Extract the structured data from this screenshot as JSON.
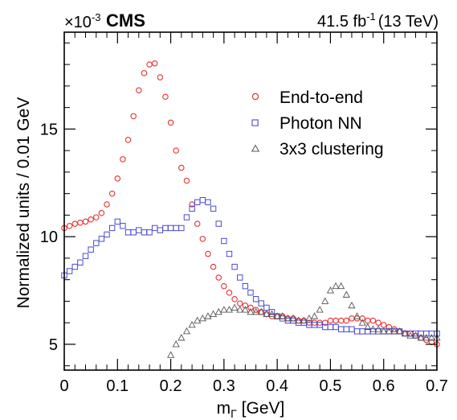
{
  "chart_data": {
    "type": "scatter",
    "experiment_label": "CMS",
    "lumi_label": "41.5 fb",
    "lumi_exponent": "-1",
    "energy_label": "(13 TeV)",
    "exponent_base": "×10",
    "exponent_power": "-3",
    "xlabel_main": "m",
    "xlabel_sub": "Γ",
    "xlabel_unit": " [GeV]",
    "ylabel": "Normalized units / 0.01 GeV",
    "xlim": [
      0,
      0.7
    ],
    "ylim": [
      3.8,
      19.5
    ],
    "xticks": [
      0,
      0.1,
      0.2,
      0.3,
      0.4,
      0.5,
      0.6,
      0.7
    ],
    "xtick_labels": [
      "0",
      "0.1",
      "0.2",
      "0.3",
      "0.4",
      "0.5",
      "0.6",
      "0.7"
    ],
    "yticks": [
      5,
      10,
      15
    ],
    "ytick_labels": [
      "5",
      "10",
      "15"
    ],
    "legend_position": "top-right",
    "series": [
      {
        "name": "End-to-end",
        "marker": "circle",
        "color": "#e8312f",
        "x": [
          0.0,
          0.01,
          0.02,
          0.03,
          0.04,
          0.05,
          0.06,
          0.07,
          0.08,
          0.09,
          0.1,
          0.11,
          0.12,
          0.13,
          0.14,
          0.15,
          0.16,
          0.17,
          0.18,
          0.19,
          0.2,
          0.21,
          0.22,
          0.23,
          0.24,
          0.25,
          0.26,
          0.27,
          0.28,
          0.29,
          0.3,
          0.31,
          0.32,
          0.33,
          0.34,
          0.35,
          0.36,
          0.37,
          0.38,
          0.39,
          0.4,
          0.41,
          0.42,
          0.43,
          0.44,
          0.45,
          0.46,
          0.47,
          0.48,
          0.49,
          0.5,
          0.51,
          0.52,
          0.53,
          0.54,
          0.55,
          0.56,
          0.57,
          0.58,
          0.59,
          0.6,
          0.61,
          0.62,
          0.63,
          0.64,
          0.65,
          0.66,
          0.67,
          0.68,
          0.69,
          0.7
        ],
        "y": [
          10.4,
          10.5,
          10.6,
          10.65,
          10.7,
          10.8,
          10.9,
          11.1,
          11.5,
          12.0,
          12.7,
          13.6,
          14.5,
          15.6,
          16.8,
          17.6,
          18.0,
          18.05,
          17.4,
          16.5,
          15.3,
          14.0,
          13.2,
          12.6,
          11.5,
          10.6,
          9.9,
          9.2,
          8.6,
          8.1,
          7.7,
          7.4,
          7.1,
          6.9,
          6.8,
          6.7,
          6.6,
          6.5,
          6.4,
          6.3,
          6.3,
          6.3,
          6.2,
          6.2,
          6.1,
          6.1,
          6.0,
          6.0,
          6.0,
          6.0,
          6.1,
          6.1,
          6.1,
          6.1,
          6.2,
          6.2,
          6.2,
          6.1,
          6.1,
          6.0,
          5.9,
          5.8,
          5.7,
          5.6,
          5.5,
          5.5,
          5.4,
          5.3,
          5.2,
          5.1,
          5.0
        ]
      },
      {
        "name": "Photon NN",
        "marker": "square",
        "color": "#4a4ad0",
        "x": [
          0.0,
          0.01,
          0.02,
          0.03,
          0.04,
          0.05,
          0.06,
          0.07,
          0.08,
          0.09,
          0.1,
          0.11,
          0.12,
          0.13,
          0.14,
          0.15,
          0.16,
          0.17,
          0.18,
          0.19,
          0.2,
          0.21,
          0.22,
          0.23,
          0.24,
          0.25,
          0.26,
          0.27,
          0.28,
          0.29,
          0.3,
          0.31,
          0.32,
          0.33,
          0.34,
          0.35,
          0.36,
          0.37,
          0.38,
          0.39,
          0.4,
          0.41,
          0.42,
          0.43,
          0.44,
          0.45,
          0.46,
          0.47,
          0.48,
          0.49,
          0.5,
          0.51,
          0.52,
          0.53,
          0.54,
          0.55,
          0.56,
          0.57,
          0.58,
          0.59,
          0.6,
          0.61,
          0.62,
          0.63,
          0.64,
          0.65,
          0.66,
          0.67,
          0.68,
          0.69,
          0.7
        ],
        "y": [
          8.2,
          8.4,
          8.6,
          8.8,
          9.1,
          9.4,
          9.7,
          9.9,
          10.1,
          10.4,
          10.7,
          10.5,
          10.2,
          10.2,
          10.3,
          10.2,
          10.2,
          10.4,
          10.3,
          10.4,
          10.4,
          10.4,
          10.4,
          10.9,
          11.3,
          11.6,
          11.7,
          11.6,
          11.3,
          10.6,
          9.8,
          9.2,
          8.6,
          8.1,
          7.7,
          7.4,
          7.1,
          6.9,
          6.7,
          6.5,
          6.3,
          6.2,
          6.1,
          6.1,
          6.0,
          6.0,
          5.9,
          5.9,
          5.9,
          5.8,
          5.8,
          5.8,
          5.7,
          5.7,
          5.7,
          5.6,
          5.6,
          5.6,
          5.6,
          5.6,
          5.6,
          5.6,
          5.6,
          5.6,
          5.5,
          5.5,
          5.5,
          5.5,
          5.5,
          5.5,
          5.5
        ]
      },
      {
        "name": "3x3 clustering",
        "marker": "triangle",
        "color": "#555555",
        "x": [
          0.2,
          0.21,
          0.22,
          0.23,
          0.24,
          0.25,
          0.26,
          0.27,
          0.28,
          0.29,
          0.3,
          0.31,
          0.32,
          0.33,
          0.34,
          0.35,
          0.36,
          0.37,
          0.38,
          0.39,
          0.4,
          0.41,
          0.42,
          0.43,
          0.44,
          0.45,
          0.46,
          0.47,
          0.48,
          0.49,
          0.5,
          0.51,
          0.52,
          0.53,
          0.54,
          0.55,
          0.56,
          0.57,
          0.58,
          0.59,
          0.6,
          0.61,
          0.62,
          0.63,
          0.64,
          0.65,
          0.66,
          0.67,
          0.68,
          0.69,
          0.7
        ],
        "y": [
          4.5,
          5.0,
          5.3,
          5.6,
          5.9,
          6.1,
          6.2,
          6.3,
          6.4,
          6.5,
          6.6,
          6.6,
          6.7,
          6.6,
          6.6,
          6.5,
          6.5,
          6.5,
          6.4,
          6.4,
          6.3,
          6.3,
          6.2,
          6.2,
          6.1,
          6.1,
          6.2,
          6.3,
          6.6,
          7.0,
          7.5,
          7.7,
          7.7,
          7.3,
          6.8,
          6.3,
          6.0,
          5.8,
          5.7,
          5.7,
          5.6,
          5.6,
          5.6,
          5.6,
          5.5,
          5.4,
          5.4,
          5.3,
          5.3,
          5.3,
          5.3
        ]
      }
    ]
  }
}
